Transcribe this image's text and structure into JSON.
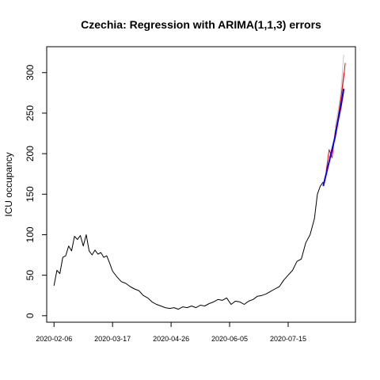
{
  "chart_data": {
    "type": "line",
    "title": "Czechia: Regression with ARIMA(1,1,3) errors",
    "xlabel": "",
    "ylabel": "ICU occupancy",
    "x_tick_labels": [
      "2020-02-06",
      "2020-03-17",
      "2020-04-26",
      "2020-06-05",
      "2020-07-15"
    ],
    "y_ticks": [
      0,
      50,
      100,
      150,
      200,
      250,
      300
    ],
    "xlim": [
      "2020-02-01",
      "2020-08-30"
    ],
    "ylim": [
      -8,
      332
    ],
    "grid": false,
    "series": [
      {
        "color": "#000000",
        "x": [
          "2020-02-06",
          "2020-02-08",
          "2020-02-10",
          "2020-02-12",
          "2020-02-14",
          "2020-02-16",
          "2020-02-18",
          "2020-02-20",
          "2020-02-22",
          "2020-02-24",
          "2020-02-26",
          "2020-02-28",
          "2020-03-01",
          "2020-03-03",
          "2020-03-05",
          "2020-03-07",
          "2020-03-09",
          "2020-03-11",
          "2020-03-13",
          "2020-03-15",
          "2020-03-17",
          "2020-03-20",
          "2020-03-23",
          "2020-03-26",
          "2020-03-29",
          "2020-04-01",
          "2020-04-04",
          "2020-04-07",
          "2020-04-10",
          "2020-04-13",
          "2020-04-16",
          "2020-04-19",
          "2020-04-22",
          "2020-04-25",
          "2020-04-28",
          "2020-05-01",
          "2020-05-04",
          "2020-05-07",
          "2020-05-10",
          "2020-05-13",
          "2020-05-16",
          "2020-05-19",
          "2020-05-22",
          "2020-05-25",
          "2020-05-28",
          "2020-05-31",
          "2020-06-03",
          "2020-06-06",
          "2020-06-09",
          "2020-06-12",
          "2020-06-15",
          "2020-06-18",
          "2020-06-21",
          "2020-06-24",
          "2020-06-27",
          "2020-06-30",
          "2020-07-03",
          "2020-07-06",
          "2020-07-09",
          "2020-07-12",
          "2020-07-15",
          "2020-07-18",
          "2020-07-21",
          "2020-07-24",
          "2020-07-27",
          "2020-07-30",
          "2020-08-02",
          "2020-08-04",
          "2020-08-06",
          "2020-08-08"
        ],
        "y": [
          37,
          56,
          52,
          72,
          74,
          86,
          80,
          98,
          94,
          99,
          86,
          100,
          80,
          75,
          81,
          76,
          78,
          72,
          74,
          65,
          55,
          48,
          42,
          40,
          36,
          33,
          31,
          25,
          22,
          17,
          14,
          12,
          10,
          9,
          10,
          8,
          11,
          10,
          12,
          10,
          13,
          12,
          15,
          17,
          20,
          19,
          22,
          14,
          18,
          17,
          14,
          18,
          20,
          24,
          25,
          27,
          30,
          33,
          36,
          44,
          50,
          56,
          67,
          70,
          90,
          100,
          120,
          150,
          160,
          165
        ]
      },
      {
        "color": "#0000ff",
        "x": [
          "2020-08-08",
          "2020-08-10",
          "2020-08-12",
          "2020-08-14",
          "2020-08-16",
          "2020-08-18",
          "2020-08-20",
          "2020-08-22"
        ],
        "y": [
          160,
          175,
          190,
          205,
          220,
          240,
          258,
          280
        ]
      },
      {
        "color": "#ff0000",
        "x": [
          "2020-08-10",
          "2020-08-12",
          "2020-08-13",
          "2020-08-14",
          "2020-08-15",
          "2020-08-16",
          "2020-08-18",
          "2020-08-20",
          "2020-08-22",
          "2020-08-23"
        ],
        "y": [
          178,
          205,
          200,
          195,
          210,
          225,
          243,
          268,
          295,
          312
        ]
      },
      {
        "color": "#d08080",
        "x": [
          "2020-08-16",
          "2020-08-18",
          "2020-08-20",
          "2020-08-22"
        ],
        "y": [
          226,
          245,
          265,
          300
        ]
      },
      {
        "color": "#c8c8c8",
        "x": [
          "2020-08-16",
          "2020-08-18",
          "2020-08-20",
          "2020-08-22"
        ],
        "y": [
          232,
          252,
          275,
          322
        ]
      },
      {
        "color": "#b8b8b8",
        "x": [
          "2020-08-16",
          "2020-08-18",
          "2020-08-20",
          "2020-08-22"
        ],
        "y": [
          218,
          240,
          262,
          292
        ]
      },
      {
        "color": "#a8a8d8",
        "x": [
          "2020-08-14",
          "2020-08-16",
          "2020-08-18",
          "2020-08-20",
          "2020-08-22"
        ],
        "y": [
          205,
          222,
          238,
          255,
          276
        ]
      }
    ]
  }
}
